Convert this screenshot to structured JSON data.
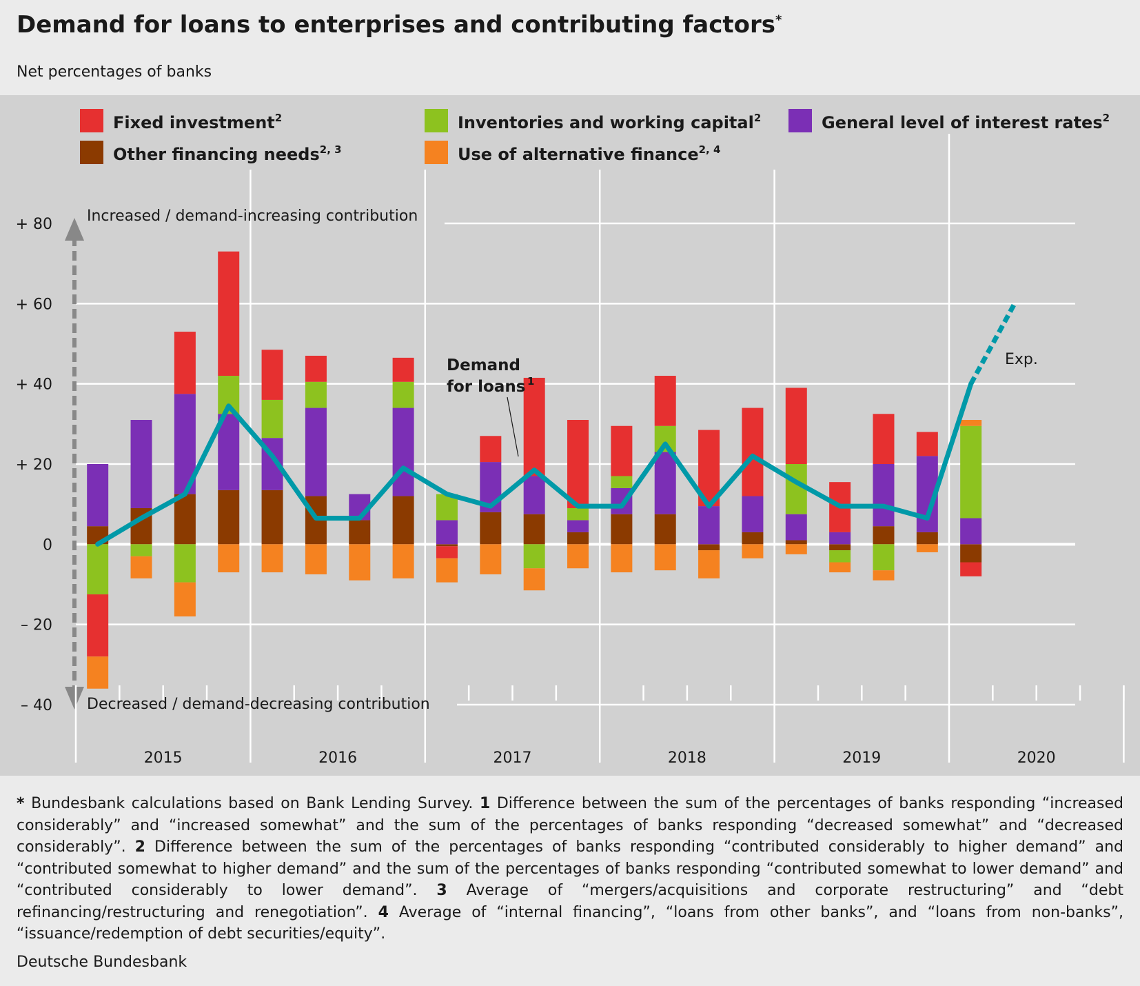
{
  "header": {
    "title": "Demand for loans to enterprises and contributing factors",
    "title_marker": "*",
    "subtitle": "Net percentages of banks"
  },
  "chart_data": {
    "type": "bar",
    "stacked": true,
    "ylim": [
      -40,
      80
    ],
    "yticks": [
      -40,
      -20,
      0,
      20,
      40,
      60,
      80
    ],
    "ytick_labels": [
      "– 40",
      "– 20",
      "0",
      "+ 20",
      "+ 40",
      "+ 60",
      "+ 80"
    ],
    "grid": true,
    "legend_position": "top",
    "annotations": {
      "top_arrow_label": "Increased / demand-increasing contribution",
      "bottom_arrow_label": "Decreased / demand-decreasing contribution",
      "line_label_1": "Demand",
      "line_label_2": "for loans",
      "line_label_sup": "1",
      "expected_label": "Exp."
    },
    "years": [
      "2015",
      "2016",
      "2017",
      "2018",
      "2019",
      "2020"
    ],
    "categories": [
      "2015 Q1",
      "2015 Q2",
      "2015 Q3",
      "2015 Q4",
      "2016 Q1",
      "2016 Q2",
      "2016 Q3",
      "2016 Q4",
      "2017 Q1",
      "2017 Q2",
      "2017 Q3",
      "2017 Q4",
      "2018 Q1",
      "2018 Q2",
      "2018 Q3",
      "2018 Q4",
      "2019 Q1",
      "2019 Q2",
      "2019 Q3",
      "2019 Q4",
      "2020 Q1"
    ],
    "series": [
      {
        "key": "other",
        "name": "Other financing needs",
        "sup": "2, 3",
        "color": "#8b3a00",
        "values": [
          4.5,
          9,
          12.5,
          13.5,
          13.5,
          12,
          6,
          12,
          -0.5,
          8,
          7.5,
          3,
          7.5,
          7.5,
          -1.5,
          3,
          1,
          -1.5,
          4.5,
          3,
          -4.5
        ]
      },
      {
        "key": "interest",
        "name": "General level of interest rates",
        "sup": "2",
        "color": "#7b2fb5",
        "values": [
          15.5,
          22,
          25,
          19,
          13,
          22,
          6.5,
          22,
          6,
          12.5,
          9.5,
          3,
          6.5,
          15.5,
          9.5,
          9,
          6.5,
          3,
          15.5,
          19,
          6.5
        ]
      },
      {
        "key": "inventories",
        "name": "Inventories and working capital",
        "sup": "2",
        "color": "#8dc21f",
        "values": [
          -12.5,
          -3,
          -9.5,
          9.5,
          9.5,
          6.5,
          0,
          6.5,
          6.5,
          0,
          -6,
          3,
          3,
          6.5,
          0,
          0,
          12.5,
          -3,
          -6.5,
          0,
          23
        ]
      },
      {
        "key": "fixed",
        "name": "Fixed investment",
        "sup": "2",
        "color": "#e63030",
        "values": [
          -15.5,
          0,
          15.5,
          31,
          12.5,
          6.5,
          0,
          6,
          -3,
          6.5,
          24.5,
          22,
          12.5,
          12.5,
          19,
          22,
          19,
          12.5,
          12.5,
          6,
          -3.5
        ]
      },
      {
        "key": "alternative",
        "name": "Use of alternative finance",
        "sup": "2, 4",
        "color": "#f58220",
        "values": [
          -8,
          -5.5,
          -8.5,
          -7,
          -7,
          -7.5,
          -9,
          -8.5,
          -6,
          -7.5,
          -5.5,
          -6,
          -7,
          -6.5,
          -7,
          -3.5,
          -2.5,
          -2.5,
          -2.5,
          -2,
          1.5
        ]
      }
    ],
    "line": {
      "name": "Demand for loans",
      "values": [
        0,
        6.5,
        12.5,
        34.5,
        22,
        6.5,
        6.5,
        19,
        12.5,
        9.5,
        18.5,
        9.5,
        9.5,
        25,
        9.5,
        22,
        15.5,
        9.5,
        9.5,
        6.5,
        40
      ],
      "expected": 60,
      "color": "#0099a8"
    },
    "legend": [
      {
        "key": "fixed",
        "label": "Fixed investment",
        "sup": "2"
      },
      {
        "key": "inventories",
        "label": "Inventories and working capital",
        "sup": "2"
      },
      {
        "key": "interest",
        "label": "General level of interest rates",
        "sup": "2"
      },
      {
        "key": "other",
        "label": "Other financing needs",
        "sup": "2, 3"
      },
      {
        "key": "alternative",
        "label": "Use of alternative finance",
        "sup": "2, 4"
      }
    ]
  },
  "footnotes": {
    "star": "*",
    "star_text": " Bundesbank calculations based on Bank Lending Survey. ",
    "n1": "1",
    "n1_text": " Difference between the sum of the percentages of banks responding “increased considerably” and “increased somewhat” and the sum of the percentages of banks responding “decreased somewhat” and “decreased considerably”. ",
    "n2": "2",
    "n2_text": " Difference between the sum of the percentages of banks responding “contributed considerably to higher demand” and “contributed somewhat to higher demand” and the sum of the percentages of banks responding “contributed somewhat to lower demand” and “contributed considerably to lower demand”. ",
    "n3": "3",
    "n3_text": " Average of “mergers/acquisitions and corporate restructuring” and “debt refinancing/restructuring and renegotiation”. ",
    "n4": "4",
    "n4_text": " Average of “internal financing”, “loans from other banks”, and “loans from non-banks”, “issuance/redemption of debt securities/equity”.",
    "source": "Deutsche Bundesbank"
  }
}
